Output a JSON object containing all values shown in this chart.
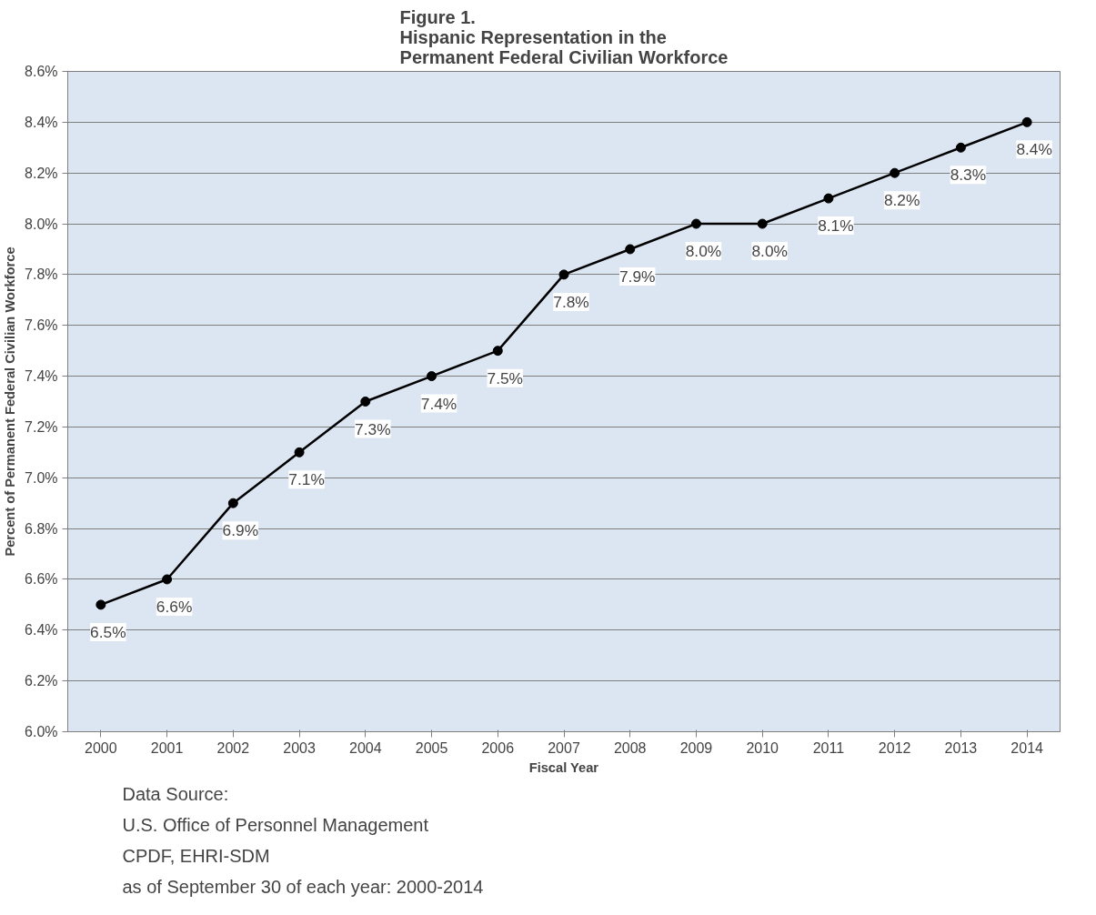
{
  "chart_data": {
    "type": "line",
    "title": "Figure 1.\nHispanic Representation in the\nPermanent Federal Civilian Workforce",
    "xlabel": "Fiscal Year",
    "ylabel": "Percent of Permanent Federal Civilian Workforce",
    "categories": [
      "2000",
      "2001",
      "2002",
      "2003",
      "2004",
      "2005",
      "2006",
      "2007",
      "2008",
      "2009",
      "2010",
      "2011",
      "2012",
      "2013",
      "2014"
    ],
    "series": [
      {
        "color": "#000000",
        "values": [
          6.5,
          6.6,
          6.9,
          7.1,
          7.3,
          7.4,
          7.5,
          7.8,
          7.9,
          8.0,
          8.0,
          8.1,
          8.2,
          8.3,
          8.4
        ],
        "value_labels": [
          "6.5%",
          "6.6%",
          "6.9%",
          "7.1%",
          "7.3%",
          "7.4%",
          "7.5%",
          "7.8%",
          "7.9%",
          "8.0%",
          "8.0%",
          "8.1%",
          "8.2%",
          "8.3%",
          "8.4%"
        ]
      }
    ],
    "ylim": [
      6.0,
      8.6
    ],
    "yticks": [
      {
        "value": 6.0,
        "label": "6.0%"
      },
      {
        "value": 6.2,
        "label": "6.2%"
      },
      {
        "value": 6.4,
        "label": "6.4%"
      },
      {
        "value": 6.6,
        "label": "6.6%"
      },
      {
        "value": 6.8,
        "label": "6.8%"
      },
      {
        "value": 7.0,
        "label": "7.0%"
      },
      {
        "value": 7.2,
        "label": "7.2%"
      },
      {
        "value": 7.4,
        "label": "7.4%"
      },
      {
        "value": 7.6,
        "label": "7.6%"
      },
      {
        "value": 7.8,
        "label": "7.8%"
      },
      {
        "value": 8.0,
        "label": "8.0%"
      },
      {
        "value": 8.2,
        "label": "8.2%"
      },
      {
        "value": 8.4,
        "label": "8.4%"
      },
      {
        "value": 8.6,
        "label": "8.6%"
      }
    ],
    "grid": "y",
    "marker": "circle",
    "line_style": "solid",
    "annotations": [
      "Data Source:",
      "U.S. Office of Personnel Management",
      "CPDF, EHRI-SDM",
      "as of September 30 of each year: 2000-2014"
    ]
  }
}
